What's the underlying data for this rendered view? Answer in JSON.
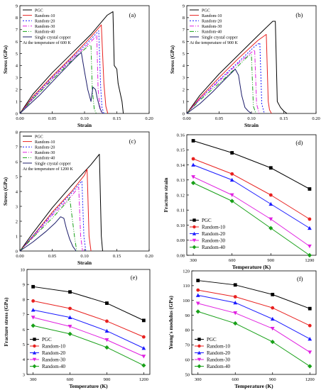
{
  "chart_data": [
    {
      "type": "line",
      "panel_label": "(a)",
      "xlabel": "Strain",
      "ylabel": "Stress (GPa)",
      "xlim": [
        0,
        0.2
      ],
      "ylim": [
        0,
        9
      ],
      "xticks": [
        0.0,
        0.05,
        0.1,
        0.15,
        0.2
      ],
      "xtick_labels": [
        "0.00",
        "0.05",
        "0.10",
        "0.15",
        "0.20"
      ],
      "yticks": [
        0,
        1,
        2,
        3,
        4,
        5,
        6,
        7,
        8,
        9
      ],
      "annotation": "At the temperature of 600 K",
      "legend_position": "top-left",
      "series": [
        {
          "name": "PGC",
          "color": "#000000",
          "dash": "",
          "x": [
            0,
            0.02,
            0.05,
            0.08,
            0.11,
            0.135,
            0.144,
            0.146,
            0.15,
            0.152,
            0.158,
            0.16
          ],
          "y": [
            0,
            1.6,
            3.4,
            5.0,
            6.6,
            8.2,
            8.5,
            4.0,
            3.7,
            2.5,
            1.0,
            0
          ]
        },
        {
          "name": "Random-10",
          "color": "#e8211f",
          "dash": "",
          "x": [
            0,
            0.02,
            0.05,
            0.08,
            0.11,
            0.126,
            0.13,
            0.133,
            0.136
          ],
          "y": [
            0,
            1.4,
            3.1,
            4.7,
            6.4,
            7.4,
            2.5,
            0.6,
            0
          ]
        },
        {
          "name": "Random-20",
          "color": "#1a1aff",
          "dash": "2,2",
          "x": [
            0,
            0.02,
            0.05,
            0.08,
            0.11,
            0.122,
            0.125,
            0.127,
            0.13
          ],
          "y": [
            0,
            1.3,
            3.0,
            4.6,
            6.2,
            6.9,
            2.2,
            0.5,
            0
          ]
        },
        {
          "name": "Random-30",
          "color": "#e020e0",
          "dash": "6,2,1,2",
          "x": [
            0,
            0.02,
            0.05,
            0.08,
            0.11,
            0.119,
            0.121,
            0.124,
            0.126
          ],
          "y": [
            0,
            1.2,
            2.9,
            4.5,
            6.0,
            6.5,
            2.0,
            0.5,
            0
          ]
        },
        {
          "name": "Random-40",
          "color": "#18a018",
          "dash": "6,2,1,2,1,2",
          "x": [
            0,
            0.02,
            0.05,
            0.08,
            0.105,
            0.11,
            0.112,
            0.115,
            0.118
          ],
          "y": [
            0,
            1.2,
            2.8,
            4.4,
            5.6,
            5.7,
            2.0,
            0.4,
            0
          ]
        },
        {
          "name": "Single crystal copper",
          "color": "#1c1c6a",
          "dash": "",
          "x": [
            0,
            0.03,
            0.06,
            0.085,
            0.095,
            0.1,
            0.105,
            0.11,
            0.113,
            0.117,
            0.12,
            0.124,
            0.128
          ],
          "y": [
            0,
            1.5,
            3.2,
            4.6,
            5.1,
            3.5,
            2.0,
            1.0,
            2.2,
            2.0,
            1.2,
            0.4,
            0
          ]
        }
      ]
    },
    {
      "type": "line",
      "panel_label": "(b)",
      "xlabel": "Strain",
      "ylabel": "Stress (GPa)",
      "xlim": [
        0,
        0.2
      ],
      "ylim": [
        0,
        9
      ],
      "xticks": [
        0.0,
        0.05,
        0.1,
        0.15,
        0.2
      ],
      "xtick_labels": [
        "0.00",
        "0.05",
        "0.10",
        "0.15",
        "0.20"
      ],
      "yticks": [
        0,
        1,
        2,
        3,
        4,
        5,
        6,
        7,
        8,
        9
      ],
      "annotation": "At the temperature of 900 K",
      "legend_position": "top-left",
      "series": [
        {
          "name": "PGC",
          "color": "#000000",
          "dash": "",
          "x": [
            0,
            0.02,
            0.05,
            0.08,
            0.11,
            0.133,
            0.137,
            0.14,
            0.145,
            0.15,
            0.155
          ],
          "y": [
            0,
            1.5,
            3.3,
            4.9,
            6.5,
            7.7,
            7.7,
            1.0,
            0.5,
            0.2,
            0
          ]
        },
        {
          "name": "Random-10",
          "color": "#e8211f",
          "dash": "",
          "x": [
            0,
            0.02,
            0.05,
            0.08,
            0.11,
            0.123,
            0.126,
            0.128,
            0.131
          ],
          "y": [
            0,
            1.3,
            3.0,
            4.6,
            6.1,
            6.6,
            1.0,
            0.3,
            0
          ]
        },
        {
          "name": "Random-20",
          "color": "#1a1aff",
          "dash": "2,2",
          "x": [
            0,
            0.02,
            0.05,
            0.08,
            0.105,
            0.113,
            0.116,
            0.12
          ],
          "y": [
            0,
            1.2,
            2.8,
            4.3,
            5.6,
            5.9,
            0.8,
            0
          ]
        },
        {
          "name": "Random-30",
          "color": "#e020e0",
          "dash": "6,2,1,2",
          "x": [
            0,
            0.02,
            0.05,
            0.08,
            0.1,
            0.105,
            0.108,
            0.112
          ],
          "y": [
            0,
            1.2,
            2.7,
            4.2,
            5.1,
            5.3,
            0.8,
            0
          ]
        },
        {
          "name": "Random-40",
          "color": "#18a018",
          "dash": "6,2,1,2,1,2",
          "x": [
            0,
            0.02,
            0.05,
            0.08,
            0.095,
            0.1,
            0.103,
            0.107
          ],
          "y": [
            0,
            1.1,
            2.5,
            4.0,
            4.8,
            4.9,
            0.6,
            0
          ]
        },
        {
          "name": "Single crystal copper",
          "color": "#1c1c6a",
          "dash": "",
          "x": [
            0,
            0.02,
            0.04,
            0.06,
            0.075,
            0.08,
            0.085,
            0.09,
            0.095,
            0.1
          ],
          "y": [
            0,
            0.8,
            1.8,
            2.9,
            3.7,
            3.2,
            1.5,
            0.5,
            0.2,
            0
          ]
        }
      ]
    },
    {
      "type": "line",
      "panel_label": "(c)",
      "xlabel": "Strain",
      "ylabel": "Stress (GPa)",
      "xlim": [
        0,
        0.2
      ],
      "ylim": [
        0,
        8
      ],
      "xticks": [
        0.0,
        0.05,
        0.1,
        0.15,
        0.2
      ],
      "xtick_labels": [
        "0.00",
        "0.05",
        "0.10",
        "0.15",
        "0.20"
      ],
      "yticks": [
        0,
        1,
        2,
        3,
        4,
        5,
        6,
        7,
        8
      ],
      "annotation": "At the temperature of 1200 K",
      "legend_position": "top-left",
      "series": [
        {
          "name": "PGC",
          "color": "#000000",
          "dash": "",
          "x": [
            0,
            0.02,
            0.05,
            0.08,
            0.11,
            0.123,
            0.126,
            0.128
          ],
          "y": [
            0,
            1.2,
            2.9,
            4.4,
            5.8,
            6.5,
            1.0,
            0
          ]
        },
        {
          "name": "Random-10",
          "color": "#e8211f",
          "dash": "",
          "x": [
            0,
            0.02,
            0.05,
            0.08,
            0.1,
            0.104,
            0.107,
            0.11
          ],
          "y": [
            0,
            1.0,
            2.6,
            4.0,
            5.1,
            5.5,
            1.0,
            0
          ]
        },
        {
          "name": "Random-20",
          "color": "#1a1aff",
          "dash": "2,2",
          "x": [
            0,
            0.02,
            0.05,
            0.08,
            0.096,
            0.099,
            0.102
          ],
          "y": [
            0,
            1.0,
            2.5,
            3.9,
            4.7,
            1.0,
            0
          ]
        },
        {
          "name": "Random-30",
          "color": "#e020e0",
          "dash": "6,2,1,2",
          "x": [
            0,
            0.02,
            0.05,
            0.08,
            0.091,
            0.094,
            0.097
          ],
          "y": [
            0,
            0.9,
            2.4,
            3.7,
            4.3,
            1.0,
            0
          ]
        },
        {
          "name": "Random-40",
          "color": "#18a018",
          "dash": "6,2,1,2,1,2",
          "x": [
            0,
            0.02,
            0.05,
            0.075,
            0.077,
            0.085,
            0.088
          ],
          "y": [
            0,
            0.9,
            2.2,
            3.4,
            3.6,
            0.8,
            0
          ]
        },
        {
          "name": "Single crystal copper",
          "color": "#1c1c6a",
          "dash": "",
          "x": [
            0,
            0.02,
            0.04,
            0.055,
            0.063,
            0.068,
            0.072,
            0.077,
            0.082,
            0.087
          ],
          "y": [
            0,
            0.6,
            1.3,
            1.9,
            2.3,
            2.2,
            1.5,
            0.8,
            0.3,
            0
          ]
        }
      ]
    },
    {
      "type": "line",
      "panel_label": "(d)",
      "xlabel": "Temperature (K)",
      "ylabel": "Fracture strain",
      "xlim": [
        250,
        1250
      ],
      "ylim": [
        0.08,
        0.16
      ],
      "xticks": [
        300,
        600,
        900,
        1200
      ],
      "yticks": [
        0.08,
        0.09,
        0.1,
        0.11,
        0.12,
        0.13,
        0.14,
        0.15,
        0.16
      ],
      "ytick_labels": [
        "0.08",
        "0.09",
        "0.10",
        "0.11",
        "0.12",
        "0.13",
        "0.14",
        "0.15",
        "0.16"
      ],
      "legend_position": "bottom-left",
      "x": [
        300,
        600,
        900,
        1200
      ],
      "series": [
        {
          "name": "PGC",
          "color": "#000000",
          "marker": "square",
          "values": [
            0.156,
            0.148,
            0.138,
            0.124
          ]
        },
        {
          "name": "Random-10",
          "color": "#e8211f",
          "marker": "circle",
          "values": [
            0.144,
            0.134,
            0.12,
            0.104
          ]
        },
        {
          "name": "Random-20",
          "color": "#1a1aff",
          "marker": "triangle-up",
          "values": [
            0.14,
            0.13,
            0.114,
            0.098
          ]
        },
        {
          "name": "Random-30",
          "color": "#e020e0",
          "marker": "triangle-down",
          "values": [
            0.132,
            0.12,
            0.104,
            0.086
          ]
        },
        {
          "name": "Random-40",
          "color": "#18a018",
          "marker": "diamond",
          "values": [
            0.128,
            0.116,
            0.098,
            0.08
          ]
        }
      ]
    },
    {
      "type": "line",
      "panel_label": "(e)",
      "xlabel": "Temperature (K)",
      "ylabel": "Fracture stress (GPa)",
      "xlim": [
        250,
        1250
      ],
      "ylim": [
        3,
        10
      ],
      "xticks": [
        300,
        600,
        900,
        1200
      ],
      "yticks": [
        3,
        4,
        5,
        6,
        7,
        8,
        9,
        10
      ],
      "legend_position": "bottom-left",
      "x": [
        300,
        600,
        900,
        1200
      ],
      "series": [
        {
          "name": "PGC",
          "color": "#000000",
          "marker": "square",
          "values": [
            8.85,
            8.5,
            7.75,
            6.6
          ]
        },
        {
          "name": "Random-10",
          "color": "#e8211f",
          "marker": "circle",
          "values": [
            7.9,
            7.4,
            6.55,
            5.5
          ]
        },
        {
          "name": "Random-20",
          "color": "#1a1aff",
          "marker": "triangle-up",
          "values": [
            7.3,
            6.8,
            5.9,
            4.75
          ]
        },
        {
          "name": "Random-30",
          "color": "#e020e0",
          "marker": "triangle-down",
          "values": [
            6.8,
            6.2,
            5.3,
            4.2
          ]
        },
        {
          "name": "Random-40",
          "color": "#18a018",
          "marker": "diamond",
          "values": [
            6.25,
            5.7,
            4.8,
            3.6
          ]
        }
      ]
    },
    {
      "type": "line",
      "panel_label": "(f)",
      "xlabel": "Temperature (K)",
      "ylabel": "Young's modulus (GPa)",
      "xlim": [
        250,
        1250
      ],
      "ylim": [
        50,
        120
      ],
      "xticks": [
        300,
        600,
        900,
        1200
      ],
      "yticks": [
        50,
        60,
        70,
        80,
        90,
        100,
        110,
        120
      ],
      "legend_position": "bottom-left",
      "x": [
        300,
        600,
        900,
        1200
      ],
      "series": [
        {
          "name": "PGC",
          "color": "#000000",
          "marker": "square",
          "values": [
            113.5,
            110.5,
            104,
            94.5
          ]
        },
        {
          "name": "Random-10",
          "color": "#e8211f",
          "marker": "circle",
          "values": [
            107,
            102.5,
            95,
            83
          ]
        },
        {
          "name": "Random-20",
          "color": "#1a1aff",
          "marker": "triangle-up",
          "values": [
            103.5,
            98.5,
            87.5,
            74
          ]
        },
        {
          "name": "Random-30",
          "color": "#e020e0",
          "marker": "triangle-down",
          "values": [
            98,
            91.5,
            81,
            65
          ]
        },
        {
          "name": "Random-40",
          "color": "#18a018",
          "marker": "diamond",
          "values": [
            92.5,
            84.5,
            72,
            55.5
          ]
        }
      ]
    }
  ]
}
